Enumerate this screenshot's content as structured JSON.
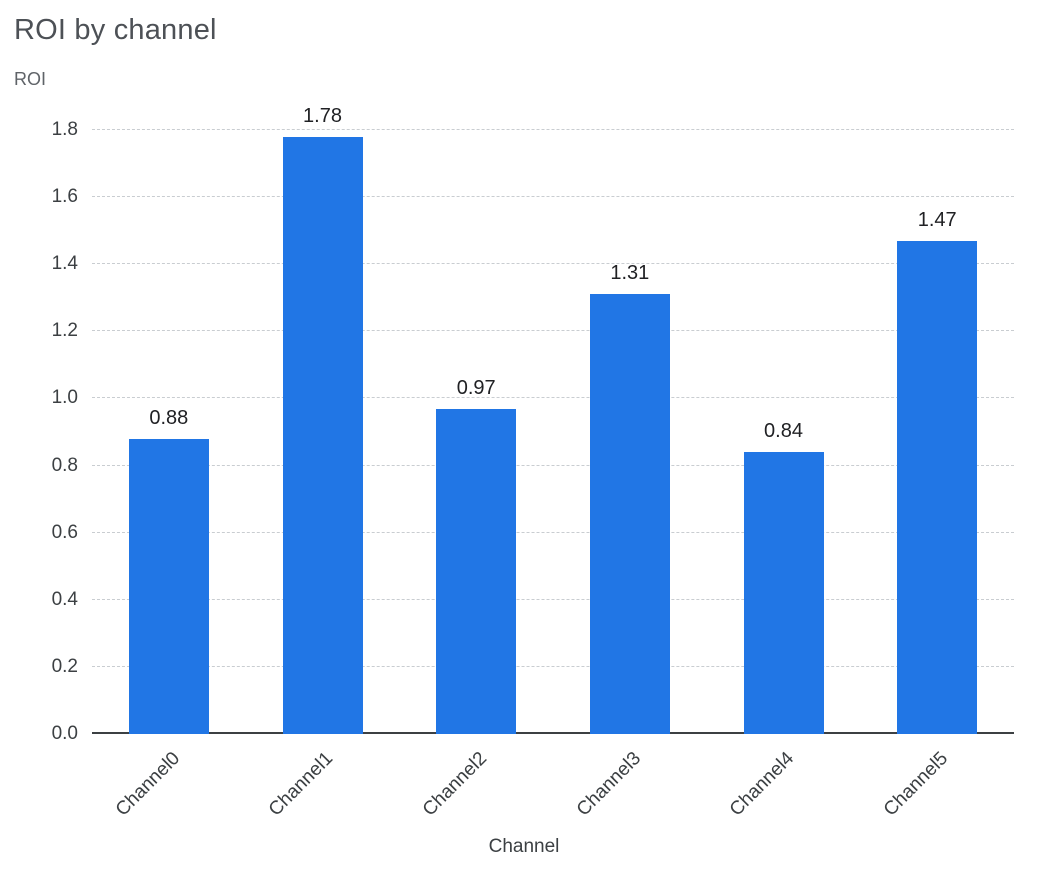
{
  "chart_data": {
    "type": "bar",
    "title": "ROI by channel",
    "ylabel": "ROI",
    "xlabel": "Channel",
    "categories": [
      "Channel0",
      "Channel1",
      "Channel2",
      "Channel3",
      "Channel4",
      "Channel5"
    ],
    "values": [
      0.88,
      1.78,
      0.97,
      1.31,
      0.84,
      1.47
    ],
    "value_labels": [
      "0.88",
      "1.78",
      "0.97",
      "1.31",
      "0.84",
      "1.47"
    ],
    "ylim": [
      0,
      1.8
    ],
    "yticks": [
      0.0,
      0.2,
      0.4,
      0.6,
      0.8,
      1.0,
      1.2,
      1.4,
      1.6,
      1.8
    ],
    "grid": "horizontal dashed",
    "legend": "none",
    "bar_color": "#2176e5",
    "axis_color": "#3c4043",
    "gridline_color": "#c9cdd1",
    "title_color": "#4d5156"
  }
}
